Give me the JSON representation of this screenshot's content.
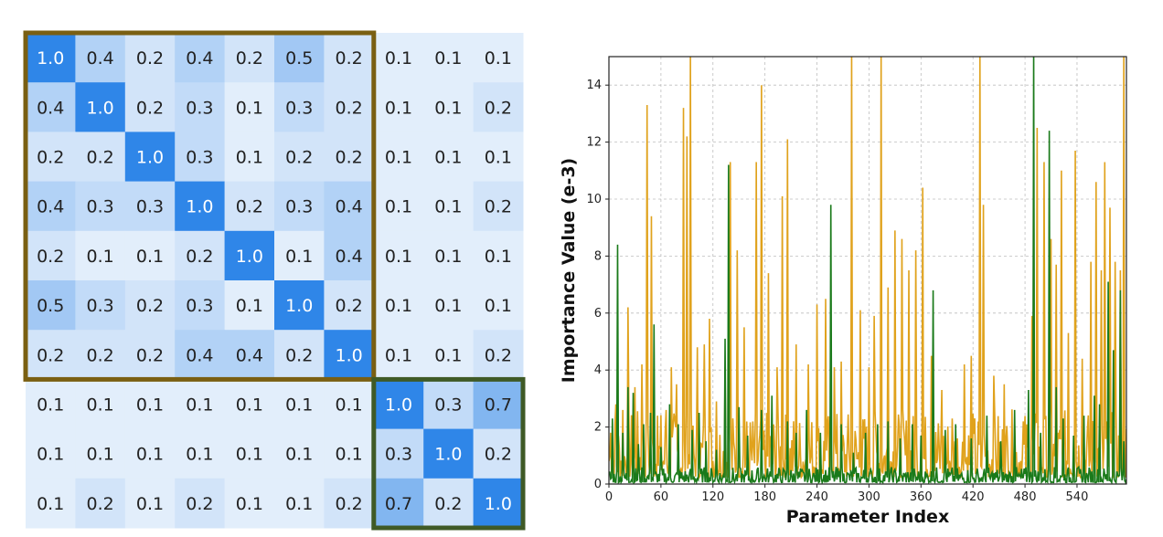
{
  "chart_data": [
    {
      "type": "heatmap",
      "matrix": [
        [
          "1.0",
          "0.4",
          "0.2",
          "0.4",
          "0.2",
          "0.5",
          "0.2",
          "0.1",
          "0.1",
          "0.1"
        ],
        [
          "0.4",
          "1.0",
          "0.2",
          "0.3",
          "0.1",
          "0.3",
          "0.2",
          "0.1",
          "0.1",
          "0.2"
        ],
        [
          "0.2",
          "0.2",
          "1.0",
          "0.3",
          "0.1",
          "0.2",
          "0.2",
          "0.1",
          "0.1",
          "0.1"
        ],
        [
          "0.4",
          "0.3",
          "0.3",
          "1.0",
          "0.2",
          "0.3",
          "0.4",
          "0.1",
          "0.1",
          "0.2"
        ],
        [
          "0.2",
          "0.1",
          "0.1",
          "0.2",
          "1.0",
          "0.1",
          "0.4",
          "0.1",
          "0.1",
          "0.1"
        ],
        [
          "0.5",
          "0.3",
          "0.2",
          "0.3",
          "0.1",
          "1.0",
          "0.2",
          "0.1",
          "0.1",
          "0.1"
        ],
        [
          "0.2",
          "0.2",
          "0.2",
          "0.4",
          "0.4",
          "0.2",
          "1.0",
          "0.1",
          "0.1",
          "0.2"
        ],
        [
          "0.1",
          "0.1",
          "0.1",
          "0.1",
          "0.1",
          "0.1",
          "0.1",
          "1.0",
          "0.3",
          "0.7"
        ],
        [
          "0.1",
          "0.1",
          "0.1",
          "0.1",
          "0.1",
          "0.1",
          "0.1",
          "0.3",
          "1.0",
          "0.2"
        ],
        [
          "0.1",
          "0.2",
          "0.1",
          "0.2",
          "0.1",
          "0.1",
          "0.2",
          "0.7",
          "0.2",
          "1.0"
        ]
      ],
      "groups": [
        {
          "rows": [
            0,
            6
          ],
          "color": "#7a5f12"
        },
        {
          "rows": [
            7,
            9
          ],
          "color": "#3f5a26"
        }
      ],
      "colors": {
        "low": "#f2f7fd",
        "high": "#2f86e8",
        "text_dark": "#222222",
        "text_light": "#ffffff"
      }
    },
    {
      "type": "line",
      "xlabel": "Parameter Index",
      "ylabel": "Importance Value (e-3)",
      "xlim": [
        0,
        597
      ],
      "ylim": [
        0,
        15
      ],
      "xticks": [
        0,
        60,
        120,
        180,
        240,
        300,
        360,
        420,
        480,
        540
      ],
      "yticks": [
        0,
        2,
        4,
        6,
        8,
        10,
        12,
        14
      ],
      "grid": true,
      "series": [
        {
          "color": "#e0a21c",
          "baseline": 1.5,
          "peaks": [
            [
              2,
              1.8
            ],
            [
              8,
              2.8
            ],
            [
              16,
              2.6
            ],
            [
              22,
              6.2
            ],
            [
              30,
              3.4
            ],
            [
              38,
              4.2
            ],
            [
              44,
              13.3
            ],
            [
              49,
              9.4
            ],
            [
              56,
              2.4
            ],
            [
              66,
              2.6
            ],
            [
              72,
              4.1
            ],
            [
              78,
              3.5
            ],
            [
              86,
              13.2
            ],
            [
              90,
              12.2
            ],
            [
              94,
              15.2
            ],
            [
              102,
              4.8
            ],
            [
              110,
              4.9
            ],
            [
              116,
              5.8
            ],
            [
              124,
              2.9
            ],
            [
              134,
              4.1
            ],
            [
              140,
              11.3
            ],
            [
              148,
              8.2
            ],
            [
              156,
              5.5
            ],
            [
              170,
              11.3
            ],
            [
              176,
              14
            ],
            [
              184,
              7.4
            ],
            [
              194,
              4.1
            ],
            [
              200,
              10.1
            ],
            [
              206,
              12.1
            ],
            [
              216,
              4.9
            ],
            [
              230,
              4.2
            ],
            [
              240,
              6.3
            ],
            [
              250,
              6.5
            ],
            [
              260,
              4.1
            ],
            [
              268,
              4.3
            ],
            [
              280,
              15.2
            ],
            [
              290,
              6.1
            ],
            [
              300,
              4.1
            ],
            [
              306,
              5.9
            ],
            [
              314,
              15.2
            ],
            [
              322,
              6.9
            ],
            [
              330,
              8.9
            ],
            [
              338,
              8.6
            ],
            [
              346,
              7.5
            ],
            [
              354,
              8.2
            ],
            [
              362,
              10.4
            ],
            [
              372,
              4.5
            ],
            [
              384,
              3.3
            ],
            [
              396,
              2.3
            ],
            [
              410,
              4.2
            ],
            [
              418,
              4.5
            ],
            [
              428,
              15.2
            ],
            [
              432,
              9.8
            ],
            [
              444,
              3.8
            ],
            [
              456,
              3.5
            ],
            [
              468,
              2.1
            ],
            [
              478,
              2.2
            ],
            [
              488,
              5.9
            ],
            [
              494,
              12.5
            ],
            [
              502,
              11.3
            ],
            [
              510,
              8.6
            ],
            [
              516,
              7.7
            ],
            [
              522,
              11
            ],
            [
              530,
              5.3
            ],
            [
              538,
              11.7
            ],
            [
              546,
              4.4
            ],
            [
              556,
              7.8
            ],
            [
              562,
              10.6
            ],
            [
              568,
              7.5
            ],
            [
              572,
              11.3
            ],
            [
              578,
              9.7
            ],
            [
              584,
              7.8
            ],
            [
              590,
              7.5
            ],
            [
              594,
              15.2
            ]
          ]
        },
        {
          "color": "#1a7a1a",
          "baseline": 0.35,
          "peaks": [
            [
              4,
              2.3
            ],
            [
              10,
              8.4
            ],
            [
              16,
              1.8
            ],
            [
              22,
              3.4
            ],
            [
              28,
              3.2
            ],
            [
              34,
              1.4
            ],
            [
              40,
              2.1
            ],
            [
              48,
              2.5
            ],
            [
              52,
              5.6
            ],
            [
              60,
              1.3
            ],
            [
              70,
              2.8
            ],
            [
              80,
              2.1
            ],
            [
              96,
              1.9
            ],
            [
              104,
              2.5
            ],
            [
              112,
              1.5
            ],
            [
              124,
              1.2
            ],
            [
              134,
              5.1
            ],
            [
              138,
              11.2
            ],
            [
              150,
              2.7
            ],
            [
              160,
              1.7
            ],
            [
              176,
              2.6
            ],
            [
              188,
              3.1
            ],
            [
              206,
              2.2
            ],
            [
              216,
              1.8
            ],
            [
              228,
              2.6
            ],
            [
              244,
              1.8
            ],
            [
              256,
              9.8
            ],
            [
              268,
              2.1
            ],
            [
              282,
              1.1
            ],
            [
              296,
              1.8
            ],
            [
              310,
              2.1
            ],
            [
              322,
              2.2
            ],
            [
              336,
              1.6
            ],
            [
              350,
              2.1
            ],
            [
              360,
              1.7
            ],
            [
              374,
              6.8
            ],
            [
              388,
              1.9
            ],
            [
              400,
              2.1
            ],
            [
              418,
              1.6
            ],
            [
              436,
              2.4
            ],
            [
              452,
              1.5
            ],
            [
              468,
              2.6
            ],
            [
              484,
              3.3
            ],
            [
              490,
              15.2
            ],
            [
              498,
              1.8
            ],
            [
              508,
              12.4
            ],
            [
              516,
              3.4
            ],
            [
              524,
              2.3
            ],
            [
              536,
              1.7
            ],
            [
              548,
              2.4
            ],
            [
              560,
              3.1
            ],
            [
              566,
              2.8
            ],
            [
              576,
              7.1
            ],
            [
              582,
              4.7
            ],
            [
              590,
              6.8
            ],
            [
              594,
              1.5
            ]
          ]
        }
      ]
    }
  ]
}
